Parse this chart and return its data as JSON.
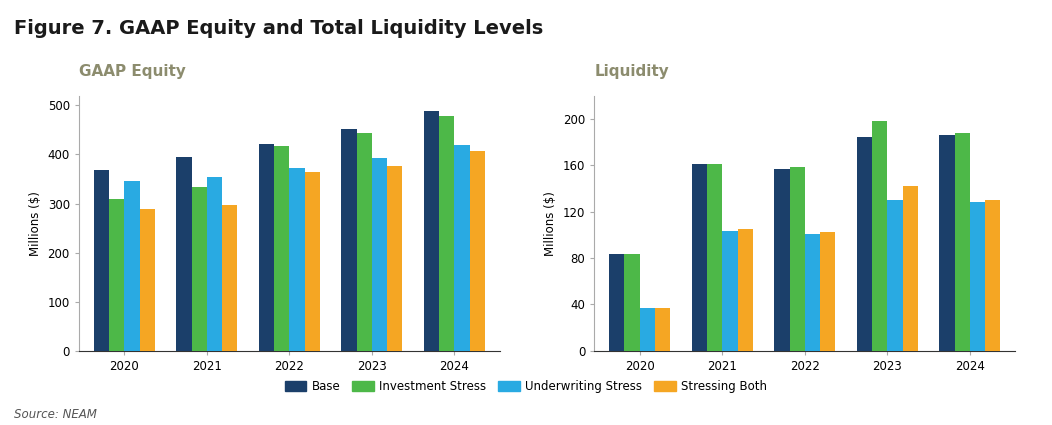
{
  "title": "Figure 7. GAAP Equity and Total Liquidity Levels",
  "source": "Source: NEAM",
  "left_subtitle": "GAAP Equity",
  "right_subtitle": "Liquidity",
  "years": [
    2020,
    2021,
    2022,
    2023,
    2024
  ],
  "gaap_equity": {
    "Base": [
      368,
      395,
      422,
      452,
      488
    ],
    "Investment Stress": [
      310,
      333,
      417,
      443,
      478
    ],
    "Underwriting Stress": [
      345,
      355,
      372,
      392,
      420
    ],
    "Stressing Both": [
      288,
      297,
      365,
      376,
      407
    ]
  },
  "liquidity": {
    "Base": [
      83,
      161,
      157,
      184,
      186
    ],
    "Investment Stress": [
      83,
      161,
      158,
      198,
      188
    ],
    "Underwriting Stress": [
      37,
      103,
      101,
      130,
      128
    ],
    "Stressing Both": [
      37,
      105,
      102,
      142,
      130
    ]
  },
  "colors": {
    "Base": "#1b3f6a",
    "Investment Stress": "#4db848",
    "Underwriting Stress": "#29aae2",
    "Stressing Both": "#f5a623"
  },
  "gaap_ylim": [
    0,
    520
  ],
  "gaap_yticks": [
    0,
    100,
    200,
    300,
    400,
    500
  ],
  "liquidity_ylim": [
    0,
    220
  ],
  "liquidity_yticks": [
    0,
    40,
    80,
    120,
    160,
    200
  ],
  "ylabel": "Millions ($)",
  "title_fontsize": 14,
  "subtitle_fontsize": 11,
  "axis_fontsize": 8.5,
  "legend_fontsize": 8.5,
  "background_color": "#ffffff",
  "subtitle_color": "#8c8c6e"
}
